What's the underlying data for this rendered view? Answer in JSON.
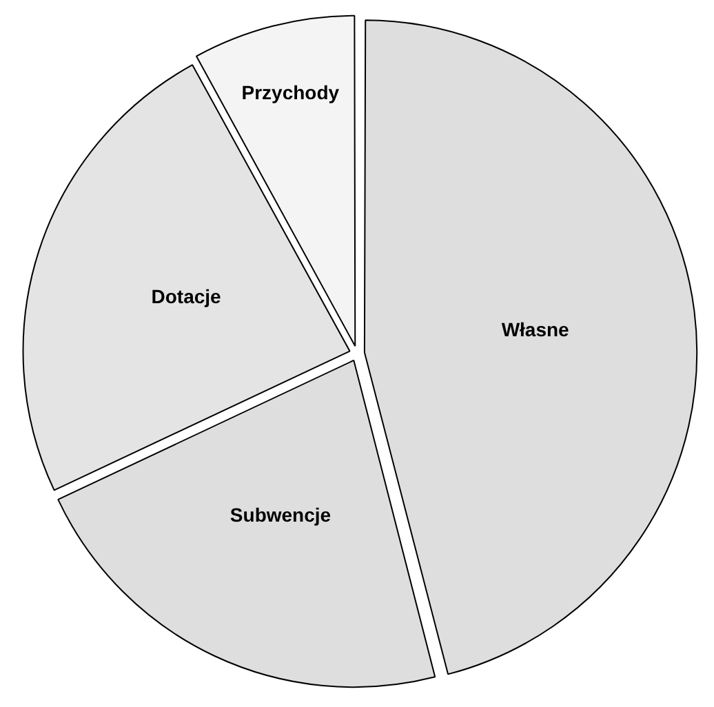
{
  "chart_data": {
    "type": "pie",
    "categories": [
      "Własne",
      "Subwencje",
      "Dotacje",
      "Przychody"
    ],
    "values": [
      46,
      22,
      24,
      8
    ],
    "colors": [
      "#dedede",
      "#dedede",
      "#e4e4e4",
      "#f4f4f4"
    ],
    "legend": false
  }
}
